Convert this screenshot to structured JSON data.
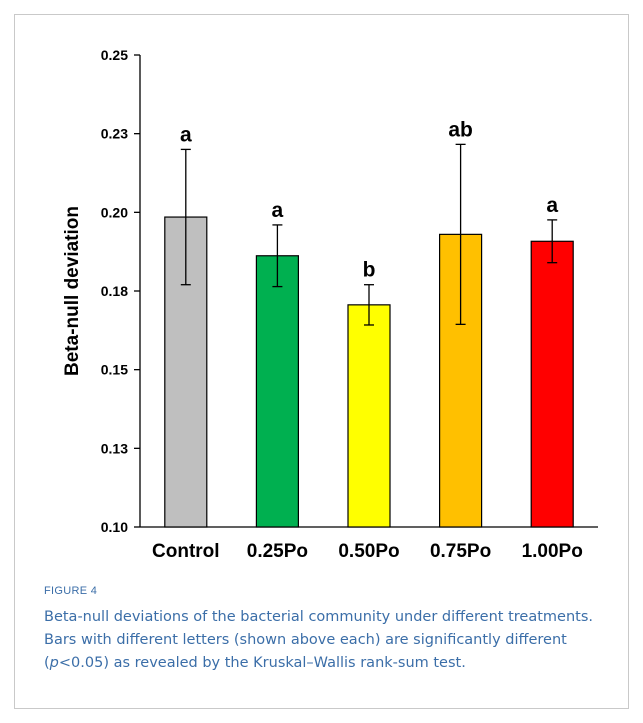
{
  "figure": {
    "label": "FIGURE 4",
    "caption_before_p": "Beta-null deviations of the bacterial community under different treatments. Bars with different letters (shown above each) are significantly different (",
    "caption_p": "p",
    "caption_after_p": "<0.05) as revealed by the Kruskal–Wallis rank-sum test."
  },
  "chart_data": {
    "type": "bar",
    "title": "",
    "xlabel": "",
    "ylabel": "Beta-null deviation",
    "ylim": [
      0.1,
      0.25
    ],
    "yticks": [
      0.1,
      0.125,
      0.15,
      0.175,
      0.2,
      0.225,
      0.25
    ],
    "ytick_labels": [
      "0.10",
      "0.13",
      "0.15",
      "0.18",
      "0.20",
      "0.23",
      "0.25"
    ],
    "categories": [
      "Control",
      "0.25Po",
      "0.50Po",
      "0.75Po",
      "1.00Po"
    ],
    "values": [
      0.1985,
      0.1862,
      0.1706,
      0.193,
      0.1908
    ],
    "errors": [
      0.0215,
      0.0098,
      0.0064,
      0.0286,
      0.0068
    ],
    "letters": [
      "a",
      "a",
      "b",
      "ab",
      "a"
    ],
    "colors": [
      "#bfbfbf",
      "#00b050",
      "#ffff00",
      "#ffc000",
      "#ff0000"
    ],
    "grid": false
  }
}
